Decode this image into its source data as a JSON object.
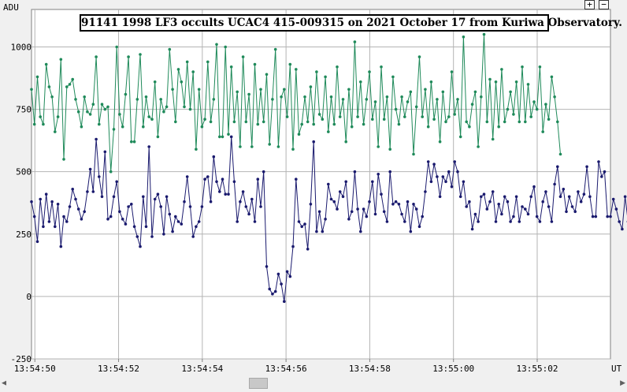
{
  "title": "91141 1998 LF3 occults UCAC4 415-009315 on 2021 October 17 from Kuriwa Observatory.",
  "controls": {
    "zoom_in": "+",
    "zoom_out": "−"
  },
  "chart_data": {
    "type": "line",
    "ylabel": "ADU",
    "xlabel": "UT",
    "ylim": [
      -250,
      1150
    ],
    "yticks": [
      -250,
      0,
      250,
      500,
      750,
      1000
    ],
    "xlim": [
      -0.08,
      13.75
    ],
    "xticks": [
      {
        "t": 0,
        "label": "13:54:50"
      },
      {
        "t": 2,
        "label": "13:54:52"
      },
      {
        "t": 4,
        "label": "13:54:54"
      },
      {
        "t": 6,
        "label": "13:54:56"
      },
      {
        "t": 8,
        "label": "13:54:58"
      },
      {
        "t": 10,
        "label": "13:55:00"
      },
      {
        "t": 12,
        "label": "13:55:02"
      }
    ],
    "x_start": -0.08,
    "x_step": 0.0702,
    "grid": true,
    "series": [
      {
        "color": "#1f8a5a",
        "values": [
          830,
          690,
          880,
          720,
          690,
          930,
          840,
          800,
          660,
          720,
          950,
          550,
          840,
          850,
          870,
          790,
          740,
          680,
          800,
          740,
          730,
          770,
          960,
          690,
          770,
          750,
          760,
          500,
          670,
          1000,
          730,
          680,
          810,
          960,
          620,
          620,
          790,
          970,
          680,
          800,
          720,
          710,
          860,
          640,
          790,
          740,
          760,
          990,
          830,
          700,
          910,
          860,
          760,
          940,
          750,
          900,
          590,
          830,
          680,
          710,
          940,
          700,
          790,
          1010,
          640,
          640,
          1000,
          650,
          920,
          700,
          820,
          600,
          960,
          700,
          810,
          600,
          930,
          690,
          830,
          700,
          890,
          610,
          790,
          990,
          600,
          800,
          830,
          720,
          930,
          590,
          910,
          650,
          690,
          800,
          700,
          840,
          690,
          900,
          730,
          710,
          880,
          660,
          800,
          690,
          920,
          720,
          790,
          620,
          830,
          680,
          1020,
          720,
          860,
          690,
          790,
          900,
          710,
          780,
          600,
          920,
          710,
          800,
          590,
          880,
          750,
          690,
          800,
          720,
          780,
          820,
          570,
          760,
          960,
          720,
          830,
          680,
          860,
          710,
          790,
          620,
          820,
          700,
          720,
          900,
          730,
          790,
          640,
          1040,
          700,
          680,
          770,
          820,
          600,
          800,
          1050,
          700,
          870,
          630,
          860,
          680,
          910,
          700,
          750,
          820,
          730,
          860,
          700,
          920,
          700,
          850,
          720,
          780,
          750,
          920,
          660,
          770,
          710,
          880,
          800,
          700,
          570
        ]
      },
      {
        "color": "#1a1a6e",
        "values": [
          380,
          320,
          220,
          390,
          280,
          410,
          300,
          380,
          280,
          370,
          200,
          320,
          300,
          360,
          430,
          390,
          350,
          310,
          340,
          420,
          510,
          420,
          630,
          480,
          400,
          580,
          310,
          320,
          400,
          460,
          340,
          310,
          290,
          360,
          370,
          280,
          240,
          200,
          400,
          280,
          600,
          240,
          390,
          410,
          360,
          250,
          400,
          330,
          260,
          320,
          300,
          290,
          380,
          480,
          360,
          240,
          280,
          300,
          360,
          470,
          480,
          380,
          560,
          460,
          420,
          470,
          410,
          410,
          640,
          460,
          300,
          380,
          420,
          360,
          330,
          390,
          300,
          470,
          360,
          500,
          120,
          30,
          10,
          20,
          90,
          50,
          -20,
          100,
          80,
          200,
          470,
          300,
          280,
          290,
          190,
          370,
          620,
          260,
          340,
          260,
          310,
          450,
          390,
          380,
          350,
          420,
          400,
          460,
          310,
          340,
          500,
          350,
          260,
          350,
          320,
          380,
          460,
          330,
          490,
          410,
          340,
          300,
          500,
          370,
          380,
          370,
          330,
          300,
          380,
          260,
          370,
          350,
          280,
          320,
          420,
          540,
          460,
          530,
          480,
          400,
          480,
          460,
          500,
          440,
          540,
          500,
          400,
          460,
          360,
          380,
          270,
          330,
          300,
          400,
          410,
          350,
          380,
          420,
          300,
          370,
          330,
          400,
          380,
          300,
          320,
          400,
          300,
          360,
          350,
          330,
          400,
          440,
          320,
          300,
          380,
          420,
          360,
          300,
          450,
          520,
          400,
          430,
          340,
          400,
          360,
          340,
          420,
          380,
          410,
          520,
          400,
          320,
          320,
          540,
          480,
          500,
          320,
          320,
          390,
          350,
          300,
          270,
          400,
          300,
          370,
          350,
          280,
          320,
          480,
          350,
          230,
          300,
          500
        ]
      }
    ]
  }
}
